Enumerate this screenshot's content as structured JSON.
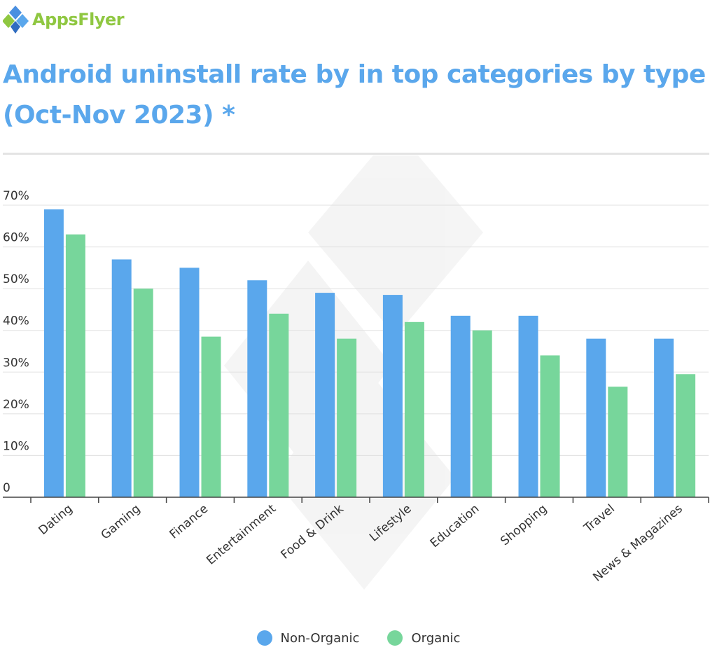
{
  "brand": {
    "name": "AppsFlyer"
  },
  "colors": {
    "non_organic": "#5aa7ec",
    "organic": "#77d69b",
    "title": "#5aa7ec",
    "grid": "#e0e0e0"
  },
  "chart_data": {
    "type": "bar",
    "title": "Android uninstall rate by in top categories by type (Oct-Nov 2023) *",
    "categories": [
      "Dating",
      "Gaming",
      "Finance",
      "Entertainment",
      "Food & Drink",
      "Lifestyle",
      "Education",
      "Shopping",
      "Travel",
      "News & Magazines"
    ],
    "series": [
      {
        "name": "Non-Organic",
        "values": [
          69,
          57,
          55,
          52,
          49,
          48.5,
          43.5,
          43.5,
          38,
          38
        ]
      },
      {
        "name": "Organic",
        "values": [
          63,
          50,
          38.5,
          44,
          38,
          42,
          40,
          34,
          26.5,
          29.5
        ]
      }
    ],
    "y_ticks": [
      "0",
      "10%",
      "20%",
      "30%",
      "40%",
      "50%",
      "60%",
      "70%"
    ],
    "ylim": [
      0,
      70
    ],
    "xlabel": "",
    "ylabel": "",
    "legend": "bottom-center"
  }
}
